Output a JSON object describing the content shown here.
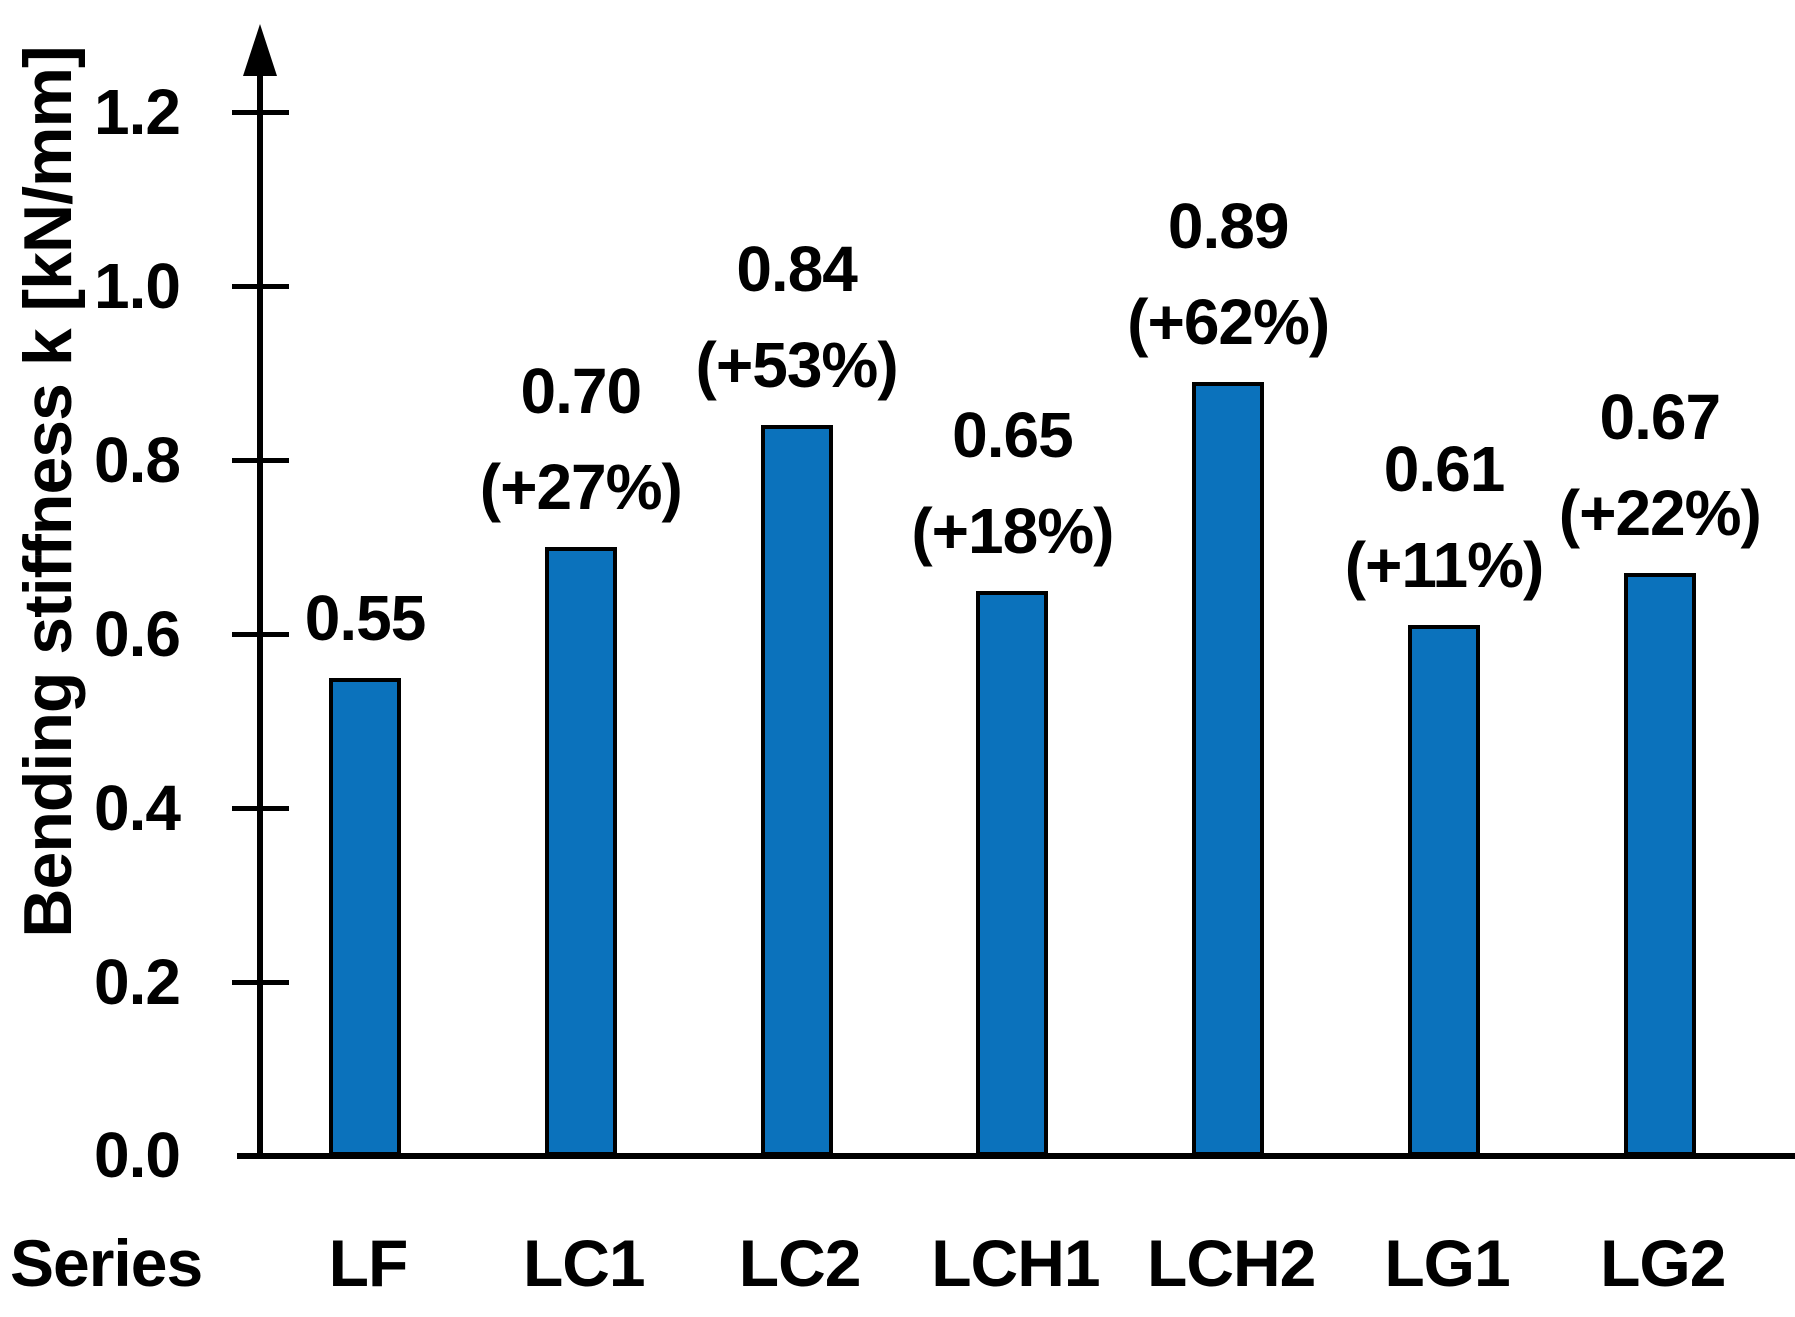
{
  "chart_data": {
    "type": "bar",
    "ylabel": "Bending stiffness k [kN/mm]",
    "categories": [
      "LF",
      "LC1",
      "LC2",
      "LCH1",
      "LCH2",
      "LG1",
      "LG2"
    ],
    "values": [
      0.55,
      0.7,
      0.84,
      0.65,
      0.89,
      0.61,
      0.67
    ],
    "value_labels": [
      "0.55",
      "0.70",
      "0.84",
      "0.65",
      "0.89",
      "0.61",
      "0.67"
    ],
    "pct_labels": [
      "",
      "(+27%)",
      "(+53%)",
      "(+18%)",
      "(+62%)",
      "(+11%)",
      "(+22%)"
    ],
    "yticks": [
      {
        "value": 0.0,
        "label": "0.0"
      },
      {
        "value": 0.2,
        "label": "0.2"
      },
      {
        "value": 0.4,
        "label": "0.4"
      },
      {
        "value": 0.6,
        "label": "0.6"
      },
      {
        "value": 0.8,
        "label": "0.8"
      },
      {
        "value": 1.0,
        "label": "1.0"
      },
      {
        "value": 1.2,
        "label": "1.2"
      }
    ],
    "ylim": [
      0.0,
      1.3
    ],
    "grid": false,
    "legend": null,
    "bar_color": "#0b72bc",
    "bar_border_color": "#000000",
    "axis_color": "#000000"
  },
  "x_axis_row": {
    "series_prefix": "Series"
  }
}
